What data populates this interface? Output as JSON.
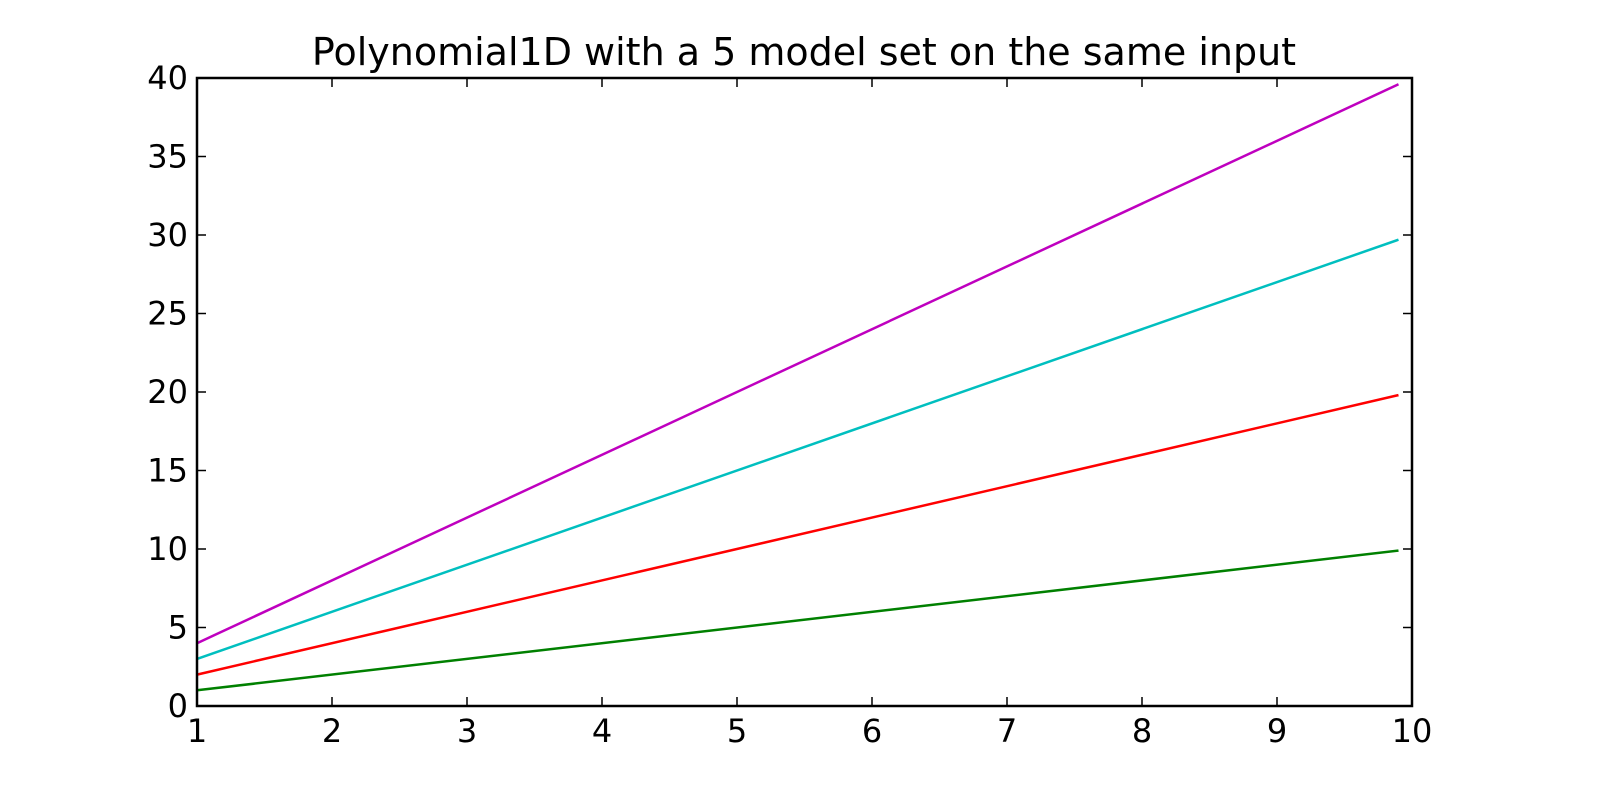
{
  "chart_data": {
    "type": "line",
    "title": "Polynomial1D with a 5 model set on the same input",
    "xlabel": "",
    "ylabel": "",
    "xlim": [
      1,
      10
    ],
    "ylim": [
      0,
      40
    ],
    "xticks": [
      "1",
      "2",
      "3",
      "4",
      "5",
      "6",
      "7",
      "8",
      "9",
      "10"
    ],
    "yticks": [
      "0",
      "5",
      "10",
      "15",
      "20",
      "25",
      "30",
      "35",
      "40"
    ],
    "grid": false,
    "legend": "none",
    "x": [
      1,
      9.9
    ],
    "series": [
      {
        "color": "#008000",
        "values": [
          1,
          9.9
        ]
      },
      {
        "color": "#ff0000",
        "values": [
          2,
          19.8
        ]
      },
      {
        "color": "#00bfbf",
        "values": [
          3,
          29.7
        ]
      },
      {
        "color": "#bf00bf",
        "values": [
          4,
          39.6
        ]
      }
    ]
  }
}
